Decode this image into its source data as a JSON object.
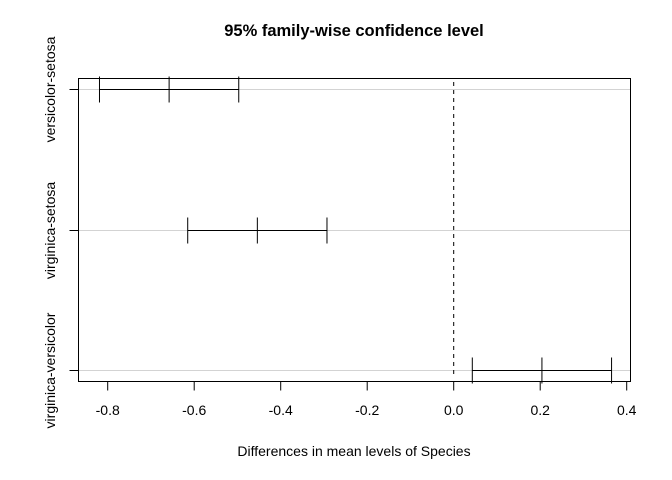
{
  "chart_data": {
    "type": "errorbar",
    "title": "95% family-wise confidence level",
    "xlabel": "Differences in mean levels of Species",
    "ylabel": "",
    "xlim": [
      -0.86,
      0.42
    ],
    "xticks": [
      -0.8,
      -0.6,
      -0.4,
      -0.2,
      0.0,
      0.2,
      0.4
    ],
    "xtick_labels": [
      "-0.8",
      "-0.6",
      "-0.4",
      "-0.2",
      "0.0",
      "0.2",
      "0.4"
    ],
    "reference_line": 0.0,
    "grid": "horizontal lines at each comparison",
    "comparisons": [
      {
        "label": "versicolor-setosa",
        "diff": -0.658,
        "lwr": -0.819,
        "upr": -0.497
      },
      {
        "label": "virginica-setosa",
        "diff": -0.454,
        "lwr": -0.615,
        "upr": -0.293
      },
      {
        "label": "virginica-versicolor",
        "diff": 0.204,
        "lwr": 0.043,
        "upr": 0.365
      }
    ]
  }
}
